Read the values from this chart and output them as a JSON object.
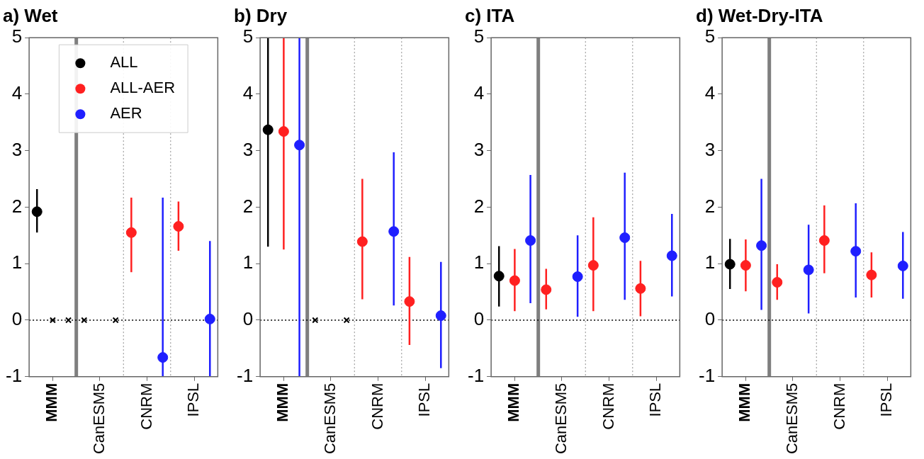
{
  "chart_data": [
    {
      "type": "scatter",
      "title": "a) Wet",
      "categories": [
        null,
        "MMM",
        null,
        null,
        "CanESM5",
        null,
        null,
        "CNRM",
        null,
        null,
        "IPSL",
        null
      ],
      "ylim": [
        -1,
        5
      ],
      "yticks": [
        -1,
        0,
        1,
        2,
        3,
        4,
        5
      ],
      "legend": "top",
      "marker": "circle",
      "ref_lines": [
        {
          "axis": "y",
          "value": 0,
          "line_style": "dotted",
          "color": "#000000"
        }
      ],
      "series": [
        {
          "name": "ALL",
          "color": "#000000",
          "values": [
            1.92,
            null,
            null,
            null,
            null,
            null,
            null,
            null,
            null,
            null,
            null,
            null
          ],
          "errors": [
            [
              1.55,
              2.32
            ],
            null,
            null,
            null,
            null,
            null,
            null,
            null,
            null,
            null,
            null,
            null
          ]
        },
        {
          "name": "ALL-AER",
          "color": "#ff2020",
          "values": [
            null,
            null,
            null,
            null,
            null,
            null,
            1.55,
            null,
            null,
            1.66,
            null,
            null
          ],
          "errors": [
            null,
            null,
            null,
            null,
            null,
            null,
            [
              0.85,
              2.17
            ],
            null,
            null,
            [
              1.23,
              2.1
            ],
            null,
            null
          ]
        },
        {
          "name": "AER",
          "color": "#1f1fff",
          "values": [
            null,
            null,
            null,
            null,
            null,
            null,
            null,
            null,
            -0.66,
            null,
            null,
            0.02
          ],
          "errors": [
            null,
            null,
            null,
            null,
            null,
            null,
            null,
            null,
            [
              -1,
              2.17
            ],
            null,
            null,
            [
              -1,
              1.4
            ]
          ]
        },
        {
          "color": "#000000",
          "marker": "cross",
          "values": [
            null,
            0,
            0,
            0,
            null,
            0,
            null,
            null,
            null,
            null,
            null,
            null
          ]
        }
      ]
    },
    {
      "type": "scatter",
      "title": "b) Dry",
      "categories": [
        null,
        "MMM",
        null,
        null,
        "CanESM5",
        null,
        null,
        "CNRM",
        null,
        null,
        "IPSL",
        null
      ],
      "ylim": [
        -1,
        5
      ],
      "yticks": [
        -1,
        0,
        1,
        2,
        3,
        4,
        5
      ],
      "marker": "circle",
      "ref_lines": [
        {
          "axis": "y",
          "value": 0,
          "line_style": "dotted",
          "color": "#000000"
        }
      ],
      "series": [
        {
          "color": "#000000",
          "values": [
            3.37,
            null,
            null,
            null,
            null,
            null,
            null,
            null,
            null,
            null,
            null,
            null
          ],
          "errors": [
            [
              1.3,
              5
            ],
            null,
            null,
            null,
            null,
            null,
            null,
            null,
            null,
            null,
            null,
            null
          ]
        },
        {
          "color": "#ff2020",
          "values": [
            null,
            3.34,
            null,
            null,
            null,
            null,
            1.39,
            null,
            null,
            0.33,
            null,
            null
          ],
          "errors": [
            null,
            [
              1.25,
              5
            ],
            null,
            null,
            null,
            null,
            [
              0.37,
              2.5
            ],
            null,
            null,
            [
              -0.44,
              1.12
            ],
            null,
            null
          ]
        },
        {
          "color": "#1f1fff",
          "values": [
            null,
            null,
            3.1,
            null,
            null,
            null,
            null,
            null,
            1.57,
            null,
            null,
            0.08
          ],
          "errors": [
            null,
            null,
            [
              -1,
              5
            ],
            null,
            null,
            null,
            null,
            null,
            [
              0.26,
              2.97
            ],
            null,
            null,
            [
              -0.85,
              1.03
            ]
          ]
        },
        {
          "color": "#000000",
          "marker": "cross",
          "values": [
            null,
            null,
            null,
            0,
            null,
            0,
            null,
            null,
            null,
            null,
            null,
            null
          ]
        }
      ]
    },
    {
      "type": "scatter",
      "title": "c) ITA",
      "categories": [
        null,
        "MMM",
        null,
        null,
        "CanESM5",
        null,
        null,
        "CNRM",
        null,
        null,
        "IPSL",
        null
      ],
      "ylim": [
        -1,
        5
      ],
      "yticks": [
        -1,
        0,
        1,
        2,
        3,
        4,
        5
      ],
      "marker": "circle",
      "ref_lines": [
        {
          "axis": "y",
          "value": 0,
          "line_style": "dotted",
          "color": "#000000"
        }
      ],
      "series": [
        {
          "color": "#000000",
          "values": [
            0.78,
            null,
            null,
            null,
            null,
            null,
            null,
            null,
            null,
            null,
            null,
            null
          ],
          "errors": [
            [
              0.24,
              1.31
            ],
            null,
            null,
            null,
            null,
            null,
            null,
            null,
            null,
            null,
            null,
            null
          ]
        },
        {
          "color": "#ff2020",
          "values": [
            null,
            0.7,
            null,
            0.54,
            null,
            null,
            0.97,
            null,
            null,
            0.56,
            null,
            null
          ],
          "errors": [
            null,
            [
              0.16,
              1.26
            ],
            null,
            [
              0.19,
              0.91
            ],
            null,
            null,
            [
              0.16,
              1.82
            ],
            null,
            null,
            [
              0.07,
              1.05
            ],
            null,
            null
          ]
        },
        {
          "color": "#1f1fff",
          "values": [
            null,
            null,
            1.41,
            null,
            null,
            0.77,
            null,
            null,
            1.46,
            null,
            null,
            1.14
          ],
          "errors": [
            null,
            null,
            [
              0.3,
              2.57
            ],
            null,
            null,
            [
              0.06,
              1.5
            ],
            null,
            null,
            [
              0.36,
              2.61
            ],
            null,
            null,
            [
              0.42,
              1.88
            ]
          ]
        }
      ]
    },
    {
      "type": "scatter",
      "title": "d) Wet-Dry-ITA",
      "categories": [
        null,
        "MMM",
        null,
        null,
        "CanESM5",
        null,
        null,
        "CNRM",
        null,
        null,
        "IPSL",
        null
      ],
      "ylim": [
        -1,
        5
      ],
      "yticks": [
        -1,
        0,
        1,
        2,
        3,
        4,
        5
      ],
      "marker": "circle",
      "ref_lines": [
        {
          "axis": "y",
          "value": 0,
          "line_style": "dotted",
          "color": "#000000"
        }
      ],
      "series": [
        {
          "color": "#000000",
          "values": [
            0.99,
            null,
            null,
            null,
            null,
            null,
            null,
            null,
            null,
            null,
            null,
            null
          ],
          "errors": [
            [
              0.55,
              1.44
            ],
            null,
            null,
            null,
            null,
            null,
            null,
            null,
            null,
            null,
            null,
            null
          ]
        },
        {
          "color": "#ff2020",
          "values": [
            null,
            0.97,
            null,
            0.67,
            null,
            null,
            1.41,
            null,
            null,
            0.8,
            null,
            null
          ],
          "errors": [
            null,
            [
              0.51,
              1.43
            ],
            null,
            [
              0.36,
              0.99
            ],
            null,
            null,
            [
              0.83,
              2.03
            ],
            null,
            null,
            [
              0.4,
              1.2
            ],
            null,
            null
          ]
        },
        {
          "color": "#1f1fff",
          "values": [
            null,
            null,
            1.32,
            null,
            null,
            0.89,
            null,
            null,
            1.22,
            null,
            null,
            0.96
          ],
          "errors": [
            null,
            null,
            [
              0.18,
              2.5
            ],
            null,
            null,
            [
              0.12,
              1.69
            ],
            null,
            null,
            [
              0.4,
              2.07
            ],
            null,
            null,
            [
              0.38,
              1.56
            ]
          ]
        }
      ]
    }
  ]
}
